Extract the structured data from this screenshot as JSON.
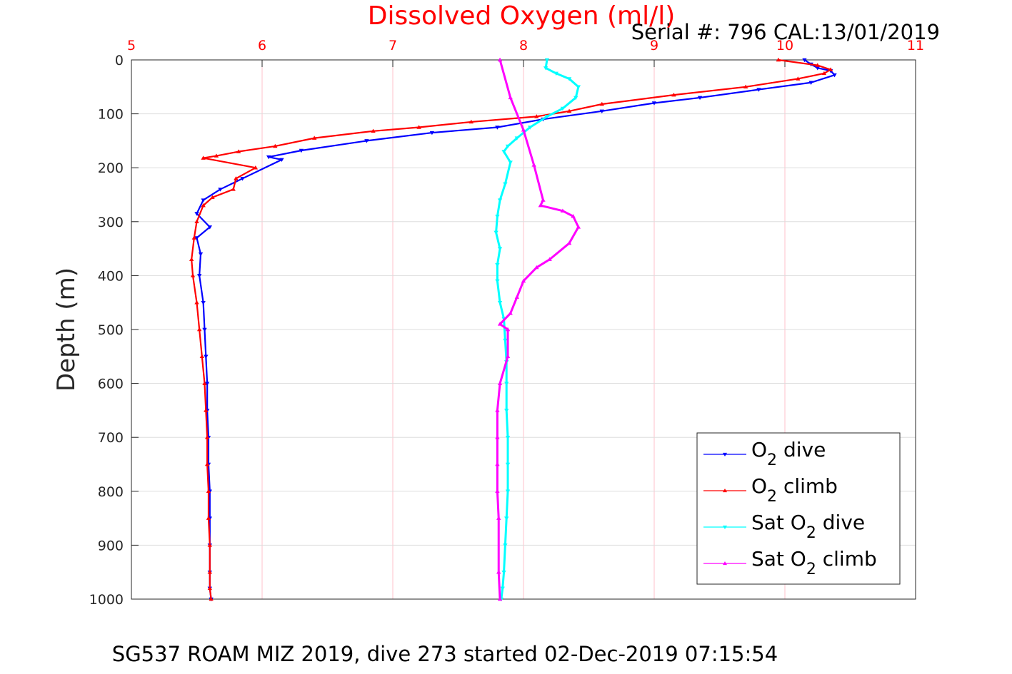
{
  "chart_data": {
    "type": "line",
    "title": "Dissolved Oxygen (ml/l)",
    "subtitle": "Serial #: 796  CAL:13/01/2019",
    "caption": "SG537 ROAM MIZ 2019, dive 273 started 02-Dec-2019 07:15:54",
    "xlabel": "",
    "ylabel": "Depth (m)",
    "xlim": [
      5,
      11
    ],
    "ylim": [
      1000,
      0
    ],
    "y_reversed": true,
    "x_axis_position": "top",
    "x_ticks": [
      "5",
      "6",
      "7",
      "8",
      "9",
      "10",
      "11"
    ],
    "y_ticks": [
      "0",
      "100",
      "200",
      "300",
      "400",
      "500",
      "600",
      "700",
      "800",
      "900",
      "1000"
    ],
    "grid": true,
    "legend_position": "bottom-right",
    "colors": {
      "title": "#ff0000",
      "x_ticks": "#ff0000",
      "grid_x": "#ffc0cb",
      "grid_y": "#dddddd"
    },
    "series": [
      {
        "name": "O2 dive",
        "legend_label": {
          "base": "O",
          "sub": "2",
          "post": " dive"
        },
        "color": "#0000ff",
        "marker": "triangle-down",
        "x": [
          10.15,
          10.2,
          10.25,
          10.35,
          10.38,
          10.2,
          9.8,
          9.35,
          9.0,
          8.6,
          8.15,
          7.8,
          7.3,
          6.8,
          6.3,
          6.05,
          6.15,
          5.85,
          5.68,
          5.55,
          5.5,
          5.6,
          5.5,
          5.53,
          5.52,
          5.55,
          5.56,
          5.57,
          5.58,
          5.58,
          5.59,
          5.59,
          5.6,
          5.6,
          5.6,
          5.6,
          5.6,
          5.61
        ],
        "y": [
          0,
          8,
          15,
          20,
          28,
          42,
          55,
          70,
          80,
          95,
          110,
          125,
          135,
          150,
          168,
          180,
          185,
          220,
          240,
          260,
          285,
          310,
          330,
          360,
          400,
          450,
          500,
          550,
          600,
          650,
          700,
          750,
          800,
          850,
          900,
          950,
          980,
          1000
        ]
      },
      {
        "name": "O2 climb",
        "legend_label": {
          "base": "O",
          "sub": "2",
          "post": " climb"
        },
        "color": "#ff0000",
        "marker": "triangle-up",
        "x": [
          9.95,
          10.25,
          10.35,
          10.3,
          10.1,
          9.7,
          9.15,
          8.6,
          8.35,
          8.1,
          7.6,
          7.2,
          6.85,
          6.4,
          6.1,
          5.82,
          5.65,
          5.55,
          5.95,
          5.8,
          5.78,
          5.62,
          5.55,
          5.5,
          5.48,
          5.46,
          5.47,
          5.5,
          5.52,
          5.54,
          5.56,
          5.57,
          5.58,
          5.58,
          5.59,
          5.59,
          5.6,
          5.6,
          5.6,
          5.61
        ],
        "y": [
          0,
          10,
          18,
          25,
          35,
          50,
          65,
          82,
          95,
          105,
          115,
          125,
          132,
          145,
          160,
          170,
          178,
          182,
          200,
          220,
          240,
          255,
          270,
          300,
          330,
          370,
          400,
          450,
          500,
          550,
          600,
          650,
          700,
          750,
          800,
          850,
          900,
          950,
          980,
          1000
        ]
      },
      {
        "name": "Sat O2 dive",
        "legend_label": {
          "base": "Sat O",
          "sub": "2",
          "post": " dive"
        },
        "color": "#00ffff",
        "marker": "triangle-down",
        "x": [
          8.18,
          8.17,
          8.25,
          8.35,
          8.42,
          8.4,
          8.3,
          8.18,
          8.05,
          7.95,
          7.88,
          7.85,
          7.9,
          7.86,
          7.82,
          7.8,
          7.79,
          7.82,
          7.8,
          7.8,
          7.82,
          7.85,
          7.86,
          7.87,
          7.87,
          7.87,
          7.88,
          7.88,
          7.88,
          7.87,
          7.86,
          7.85,
          7.84,
          7.83
        ],
        "y": [
          0,
          15,
          25,
          35,
          50,
          70,
          90,
          105,
          125,
          145,
          160,
          170,
          190,
          230,
          260,
          290,
          320,
          350,
          380,
          410,
          450,
          480,
          520,
          560,
          600,
          650,
          700,
          750,
          800,
          850,
          900,
          950,
          980,
          1000
        ]
      },
      {
        "name": "Sat O2 climb",
        "legend_label": {
          "base": "Sat O",
          "sub": "2",
          "post": " climb"
        },
        "color": "#ff00ff",
        "marker": "triangle-up",
        "x": [
          7.82,
          7.9,
          8.0,
          8.08,
          8.15,
          8.13,
          8.3,
          8.38,
          8.42,
          8.35,
          8.2,
          8.1,
          8.0,
          7.95,
          7.9,
          7.82,
          7.88,
          7.88,
          7.82,
          7.8,
          7.8,
          7.8,
          7.8,
          7.81,
          7.81,
          7.82
        ],
        "y": [
          0,
          70,
          130,
          195,
          260,
          270,
          280,
          290,
          310,
          340,
          370,
          385,
          410,
          440,
          470,
          490,
          500,
          550,
          600,
          650,
          700,
          750,
          800,
          850,
          950,
          1000
        ]
      }
    ]
  }
}
